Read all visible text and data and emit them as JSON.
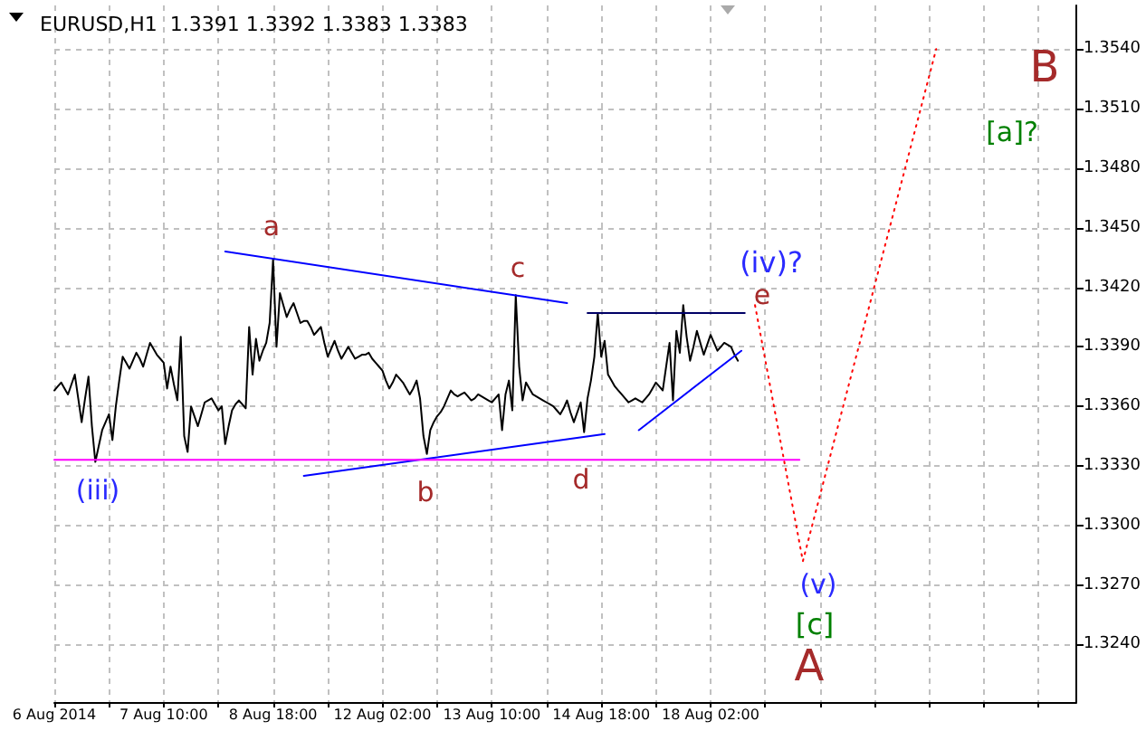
{
  "chart_data": {
    "type": "line",
    "title": "EURUSD,H1  1.3391 1.3392 1.3383 1.3383",
    "grid": true,
    "marker": "none",
    "categories": [
      "6 Aug 2014",
      null,
      null,
      null,
      null,
      null,
      null,
      null,
      null,
      null,
      null,
      null,
      null,
      null,
      null,
      null,
      null,
      null,
      null,
      null,
      null,
      null,
      null,
      null,
      null,
      null,
      null,
      null,
      null,
      null,
      null,
      null,
      "7 Aug 10:00",
      null,
      null,
      null,
      null,
      null,
      null,
      null,
      null,
      null,
      null,
      null,
      null,
      null,
      null,
      null,
      null,
      null,
      null,
      null,
      null,
      null,
      null,
      null,
      null,
      null,
      null,
      null,
      null,
      null,
      null,
      null,
      "8 Aug 18:00",
      null,
      null,
      null,
      null,
      null,
      null,
      null,
      null,
      null,
      null,
      null,
      null,
      null,
      null,
      null,
      null,
      null,
      null,
      null,
      null,
      null,
      null,
      null,
      null,
      null,
      null,
      null,
      null,
      null,
      null,
      null,
      "12 Aug 02:00",
      null,
      null,
      null,
      null,
      null,
      null,
      null,
      null,
      null,
      null,
      null,
      null,
      null,
      null,
      null,
      null,
      null,
      null,
      null,
      null,
      null,
      null,
      null,
      null,
      null,
      null,
      null,
      null,
      null,
      null,
      null,
      "13 Aug 10:00",
      null,
      null,
      null,
      null,
      null,
      null,
      null,
      null,
      null,
      null,
      null,
      null,
      null,
      null,
      null,
      null,
      null,
      null,
      null,
      null,
      null,
      null,
      null,
      null,
      null,
      null,
      null,
      null,
      null,
      null,
      null,
      "14 Aug 18:00",
      null,
      null,
      null,
      null,
      null,
      null,
      null,
      null,
      null,
      null,
      null,
      null,
      null,
      null,
      null,
      null,
      null,
      null,
      null,
      null,
      null,
      null,
      null,
      null,
      null,
      null,
      null,
      null,
      null,
      null,
      null,
      "18 Aug 02:00",
      null,
      null,
      null,
      null,
      null,
      null,
      null,
      null,
      null,
      null,
      null,
      null,
      null,
      null,
      null,
      null,
      null,
      null,
      null,
      null,
      null,
      null,
      null,
      null,
      null,
      null,
      null,
      null,
      null,
      null,
      null,
      null,
      null,
      null,
      null,
      null,
      null,
      null,
      null,
      null,
      null,
      null,
      null,
      null,
      null,
      null,
      null,
      null,
      null,
      null,
      null,
      null,
      null,
      null,
      null,
      null,
      null,
      null,
      null,
      null,
      null,
      null,
      null,
      null,
      null,
      null,
      null,
      null,
      null,
      null,
      null,
      null,
      null,
      null,
      null,
      null,
      null,
      null,
      null,
      null,
      null,
      null,
      null,
      null,
      null,
      null,
      null,
      null,
      null,
      null,
      null,
      null,
      null,
      null,
      null,
      null,
      null,
      null,
      null,
      null,
      null,
      null,
      null,
      null,
      null,
      null,
      null
    ],
    "ylim": [
      1.3211,
      1.3562
    ],
    "yticks": [
      {
        "value": 1.324,
        "label": "1.3240"
      },
      {
        "value": 1.327,
        "label": "1.3270"
      },
      {
        "value": 1.33,
        "label": "1.3300"
      },
      {
        "value": 1.333,
        "label": "1.3330"
      },
      {
        "value": 1.336,
        "label": "1.3360"
      },
      {
        "value": 1.339,
        "label": "1.3390"
      },
      {
        "value": 1.342,
        "label": "1.3420"
      },
      {
        "value": 1.345,
        "label": "1.3450"
      },
      {
        "value": 1.348,
        "label": "1.3480"
      },
      {
        "value": 1.351,
        "label": "1.3510"
      },
      {
        "value": 1.354,
        "label": "1.3540"
      }
    ],
    "series": [
      {
        "color": "#000000",
        "values": [
          1.3368,
          1.337,
          1.3372,
          1.3369,
          1.3366,
          1.3371,
          1.3376,
          1.3364,
          1.3352,
          1.3364,
          1.3375,
          1.335,
          1.3332,
          1.334,
          1.3348,
          1.3352,
          1.3356,
          1.3343,
          1.336,
          1.3373,
          1.3385,
          1.3382,
          1.3379,
          1.3383,
          1.3387,
          1.3384,
          1.338,
          1.3386,
          1.3392,
          1.3389,
          1.3386,
          1.3384,
          1.3382,
          1.3369,
          1.338,
          1.3371,
          1.3363,
          1.3395,
          1.3345,
          1.3337,
          1.336,
          1.3355,
          1.335,
          1.3356,
          1.3362,
          1.3363,
          1.3364,
          1.3361,
          1.3358,
          1.336,
          1.3341,
          1.335,
          1.3358,
          1.3361,
          1.3363,
          1.3361,
          1.3359,
          1.34,
          1.3376,
          1.3394,
          1.3383,
          1.3388,
          1.3392,
          1.3402,
          1.3434,
          1.339,
          1.3417,
          1.3411,
          1.3405,
          1.3409,
          1.3412,
          1.3407,
          1.3402,
          1.3403,
          1.3403,
          1.34,
          1.3396,
          1.3398,
          1.34,
          1.3392,
          1.3385,
          1.3389,
          1.3393,
          1.3388,
          1.3384,
          1.3387,
          1.339,
          1.3387,
          1.3384,
          1.3385,
          1.3386,
          1.3386,
          1.3387,
          1.3384,
          1.3382,
          1.338,
          1.3378,
          1.3373,
          1.3369,
          1.3372,
          1.3376,
          1.3374,
          1.3372,
          1.3369,
          1.3366,
          1.3369,
          1.3373,
          1.3364,
          1.3345,
          1.3336,
          1.3348,
          1.3352,
          1.3355,
          1.3357,
          1.336,
          1.3364,
          1.3368,
          1.3366,
          1.3365,
          1.3366,
          1.3367,
          1.3365,
          1.3363,
          1.3364,
          1.3366,
          1.3365,
          1.3364,
          1.3363,
          1.3362,
          1.3364,
          1.3366,
          1.3348,
          1.3366,
          1.3373,
          1.3358,
          1.3416,
          1.338,
          1.3363,
          1.3372,
          1.3369,
          1.3366,
          1.3365,
          1.3364,
          1.3363,
          1.3362,
          1.3361,
          1.336,
          1.3358,
          1.3356,
          1.3359,
          1.3363,
          1.3357,
          1.3352,
          1.3357,
          1.3362,
          1.3347,
          1.3364,
          1.3373,
          1.3385,
          1.3407,
          1.3385,
          1.3393,
          1.3376,
          1.3373,
          1.337,
          1.3368,
          1.3366,
          1.3364,
          1.3362,
          1.3363,
          1.3364,
          1.3363,
          1.3362,
          1.3364,
          1.3366,
          1.3369,
          1.3372,
          1.337,
          1.3368,
          1.338,
          1.3392,
          1.3363,
          1.3398,
          1.3387,
          1.3411,
          1.3395,
          1.3383,
          1.339,
          1.3398,
          1.3392,
          1.3386,
          1.3391,
          1.3396,
          1.3392,
          1.3388,
          1.339,
          1.3392,
          1.3391,
          1.339,
          1.3386,
          1.3383,
          null,
          null,
          null,
          null,
          null,
          null,
          null,
          null,
          null,
          null,
          null,
          null,
          null,
          null,
          null,
          null,
          null,
          null,
          null,
          null,
          null,
          null,
          null,
          null,
          null,
          null,
          null,
          null,
          null,
          null,
          null,
          null,
          null,
          null,
          null,
          null,
          null,
          null,
          null,
          null,
          null,
          null,
          null,
          null,
          null,
          null,
          null,
          null,
          null,
          null,
          null,
          null,
          null,
          null,
          null,
          null,
          null,
          null,
          null,
          null,
          null,
          null,
          null,
          null,
          null,
          null,
          null,
          null,
          null,
          null,
          null,
          null,
          null,
          null,
          null,
          null,
          null,
          null,
          null,
          null,
          null,
          null,
          null,
          null,
          null,
          null,
          null,
          null,
          null,
          null,
          null,
          null,
          null,
          null,
          null,
          null,
          null,
          null,
          null
        ]
      },
      {
        "color": "#0000ff",
        "values": [
          null,
          null,
          null,
          null,
          null,
          null,
          null,
          null,
          null,
          null,
          null,
          null,
          null,
          null,
          null,
          null,
          null,
          null,
          null,
          null,
          null,
          null,
          null,
          null,
          null,
          null,
          null,
          null,
          null,
          null,
          null,
          null,
          null,
          null,
          null,
          null,
          null,
          null,
          null,
          null,
          null,
          null,
          null,
          null,
          null,
          null,
          null,
          null,
          null,
          null,
          1.3438,
          null,
          null,
          null,
          null,
          null,
          null,
          null,
          null,
          null,
          null,
          null,
          null,
          null,
          null,
          null,
          null,
          null,
          null,
          null,
          null,
          null,
          null,
          null,
          null,
          null,
          null,
          null,
          null,
          null,
          null,
          null,
          null,
          null,
          null,
          null,
          null,
          null,
          null,
          null,
          null,
          null,
          null,
          null,
          null,
          null,
          null,
          null,
          null,
          null,
          null,
          null,
          null,
          null,
          null,
          null,
          null,
          null,
          null,
          null,
          null,
          null,
          null,
          null,
          null,
          null,
          null,
          null,
          null,
          null,
          null,
          null,
          null,
          null,
          null,
          null,
          null,
          null,
          null,
          null,
          null,
          null,
          null,
          null,
          null,
          null,
          null,
          null,
          null,
          null,
          null,
          null,
          null,
          null,
          null,
          null,
          null,
          null,
          null,
          null,
          1.3412,
          null,
          null,
          null,
          null,
          null,
          null,
          null,
          null,
          null,
          null,
          null,
          null,
          null,
          null,
          null,
          null,
          null,
          null,
          null,
          null,
          null,
          null,
          null,
          null,
          null,
          null,
          null,
          null,
          null,
          null,
          null,
          null,
          null,
          null,
          null,
          null,
          null,
          null,
          null,
          null,
          null,
          null,
          null,
          null,
          null,
          null,
          null,
          null,
          null,
          null,
          null,
          null,
          null,
          null,
          null,
          null,
          null,
          null,
          null,
          null,
          null,
          null,
          null,
          null,
          null,
          null,
          null,
          null,
          null,
          null,
          null,
          null,
          null,
          null,
          null,
          null,
          null,
          null,
          null,
          null,
          null,
          null,
          null,
          null,
          null,
          null,
          null,
          null,
          null,
          null,
          null,
          null,
          null,
          null,
          null,
          null,
          null,
          null,
          null,
          null,
          null,
          null,
          null,
          null,
          null,
          null,
          null,
          null,
          null,
          null,
          null,
          null,
          null,
          null,
          null,
          null,
          null,
          null,
          null,
          null,
          null,
          null,
          null,
          null,
          null,
          null,
          null,
          null,
          null,
          null,
          null,
          null,
          null,
          null,
          null,
          null,
          null,
          null,
          null,
          null,
          null,
          null,
          null,
          null,
          null,
          null,
          null,
          null,
          null
        ]
      },
      {
        "color": "#0000ff",
        "values": [
          null,
          null,
          null,
          null,
          null,
          null,
          null,
          null,
          null,
          null,
          null,
          null,
          null,
          null,
          null,
          null,
          null,
          null,
          null,
          null,
          null,
          null,
          null,
          null,
          null,
          null,
          null,
          null,
          null,
          null,
          null,
          null,
          null,
          null,
          null,
          null,
          null,
          null,
          null,
          null,
          null,
          null,
          null,
          null,
          null,
          null,
          null,
          null,
          null,
          null,
          null,
          null,
          null,
          null,
          null,
          null,
          null,
          null,
          null,
          null,
          null,
          null,
          null,
          null,
          null,
          null,
          null,
          null,
          null,
          null,
          null,
          null,
          null,
          1.3325,
          null,
          null,
          null,
          null,
          null,
          null,
          null,
          null,
          null,
          null,
          null,
          null,
          null,
          null,
          null,
          null,
          null,
          null,
          null,
          null,
          null,
          null,
          null,
          null,
          null,
          null,
          null,
          null,
          null,
          null,
          null,
          null,
          null,
          null,
          null,
          null,
          null,
          null,
          null,
          null,
          null,
          null,
          null,
          null,
          null,
          null,
          null,
          null,
          null,
          null,
          null,
          null,
          null,
          null,
          null,
          null,
          null,
          null,
          null,
          null,
          null,
          null,
          null,
          null,
          null,
          null,
          null,
          null,
          null,
          null,
          null,
          null,
          null,
          null,
          null,
          null,
          null,
          null,
          null,
          null,
          null,
          null,
          null,
          null,
          null,
          null,
          null,
          1.3346,
          null,
          null,
          null,
          null,
          null,
          null,
          null,
          null,
          null,
          null,
          null,
          null,
          null,
          null,
          null,
          null,
          null,
          null,
          null,
          null,
          null,
          null,
          null,
          null,
          null,
          null,
          null,
          null,
          null,
          null,
          null,
          null,
          null,
          null,
          null,
          null,
          null,
          null,
          null,
          null,
          null,
          null,
          null,
          null,
          null,
          null,
          null,
          null,
          null,
          null,
          null,
          null,
          null,
          null,
          null,
          null,
          null,
          null,
          null,
          null,
          null,
          null,
          null,
          null,
          null,
          null,
          null,
          null,
          null,
          null,
          null,
          null,
          null,
          null,
          null,
          null,
          null,
          null,
          null,
          null,
          null,
          null,
          null,
          null,
          null,
          null,
          null,
          null,
          null,
          null,
          null,
          null,
          null,
          null,
          null,
          null,
          null,
          null,
          null,
          null,
          null,
          null,
          null,
          null,
          null,
          null,
          null,
          null,
          null,
          null,
          null,
          null,
          null,
          null,
          null,
          null,
          null,
          null,
          null,
          null,
          null,
          null,
          null,
          null,
          null,
          null,
          null,
          null,
          null,
          null,
          null,
          null,
          null,
          null,
          null,
          null,
          null,
          null
        ]
      },
      {
        "color": "#0000ff",
        "values": [
          null,
          null,
          null,
          null,
          null,
          null,
          null,
          null,
          null,
          null,
          null,
          null,
          null,
          null,
          null,
          null,
          null,
          null,
          null,
          null,
          null,
          null,
          null,
          null,
          null,
          null,
          null,
          null,
          null,
          null,
          null,
          null,
          null,
          null,
          null,
          null,
          null,
          null,
          null,
          null,
          null,
          null,
          null,
          null,
          null,
          null,
          null,
          null,
          null,
          null,
          null,
          null,
          null,
          null,
          null,
          null,
          null,
          null,
          null,
          null,
          null,
          null,
          null,
          null,
          null,
          null,
          null,
          null,
          null,
          null,
          null,
          null,
          null,
          null,
          null,
          null,
          null,
          null,
          null,
          null,
          null,
          null,
          null,
          null,
          null,
          null,
          null,
          null,
          null,
          null,
          null,
          null,
          null,
          null,
          null,
          null,
          null,
          null,
          null,
          null,
          null,
          null,
          null,
          null,
          null,
          null,
          null,
          null,
          null,
          null,
          null,
          null,
          null,
          null,
          null,
          null,
          null,
          null,
          null,
          null,
          null,
          null,
          null,
          null,
          null,
          null,
          null,
          null,
          null,
          null,
          null,
          null,
          null,
          null,
          null,
          null,
          null,
          null,
          null,
          null,
          null,
          null,
          null,
          null,
          null,
          null,
          null,
          null,
          null,
          null,
          null,
          null,
          null,
          null,
          null,
          null,
          null,
          null,
          null,
          null,
          null,
          null,
          null,
          null,
          null,
          null,
          null,
          null,
          null,
          null,
          null,
          1.3348,
          null,
          null,
          null,
          null,
          null,
          null,
          null,
          null,
          null,
          null,
          null,
          null,
          null,
          null,
          null,
          null,
          null,
          null,
          null,
          null,
          null,
          null,
          null,
          null,
          null,
          null,
          null,
          null,
          null,
          1.3388,
          null,
          null,
          null,
          null,
          null,
          null,
          null,
          null,
          null,
          null,
          null,
          null,
          null,
          null,
          null,
          null,
          null,
          null,
          null,
          null,
          null,
          null,
          null,
          null,
          null,
          null,
          null,
          null,
          null,
          null,
          null,
          null,
          null,
          null,
          null,
          null,
          null,
          null,
          null,
          null,
          null,
          null,
          null,
          null,
          null,
          null,
          null,
          null,
          null,
          null,
          null,
          null,
          null,
          null,
          null,
          null,
          null,
          null,
          null,
          null,
          null,
          null,
          null,
          null,
          null,
          null,
          null,
          null,
          null,
          null,
          null,
          null,
          null,
          null,
          null,
          null,
          null,
          null,
          null,
          null,
          null,
          null,
          null,
          null,
          null,
          null,
          null,
          null,
          null,
          null,
          null,
          null,
          null,
          null,
          null,
          null,
          null,
          null
        ]
      },
      {
        "color": "#000066",
        "values": [
          null,
          null,
          null,
          null,
          null,
          null,
          null,
          null,
          null,
          null,
          null,
          null,
          null,
          null,
          null,
          null,
          null,
          null,
          null,
          null,
          null,
          null,
          null,
          null,
          null,
          null,
          null,
          null,
          null,
          null,
          null,
          null,
          null,
          null,
          null,
          null,
          null,
          null,
          null,
          null,
          null,
          null,
          null,
          null,
          null,
          null,
          null,
          null,
          null,
          null,
          null,
          null,
          null,
          null,
          null,
          null,
          null,
          null,
          null,
          null,
          null,
          null,
          null,
          null,
          null,
          null,
          null,
          null,
          null,
          null,
          null,
          null,
          null,
          null,
          null,
          null,
          null,
          null,
          null,
          null,
          null,
          null,
          null,
          null,
          null,
          null,
          null,
          null,
          null,
          null,
          null,
          null,
          null,
          null,
          null,
          null,
          null,
          null,
          null,
          null,
          null,
          null,
          null,
          null,
          null,
          null,
          null,
          null,
          null,
          null,
          null,
          null,
          null,
          null,
          null,
          null,
          null,
          null,
          null,
          null,
          null,
          null,
          null,
          null,
          null,
          null,
          null,
          null,
          null,
          null,
          null,
          null,
          null,
          null,
          null,
          null,
          null,
          null,
          null,
          null,
          null,
          null,
          null,
          null,
          null,
          null,
          null,
          null,
          null,
          null,
          null,
          null,
          null,
          null,
          null,
          null,
          1.3407,
          null,
          null,
          null,
          null,
          null,
          null,
          null,
          null,
          null,
          null,
          null,
          null,
          null,
          null,
          null,
          null,
          null,
          null,
          null,
          null,
          null,
          null,
          null,
          null,
          null,
          null,
          null,
          null,
          null,
          null,
          null,
          null,
          null,
          null,
          null,
          null,
          null,
          null,
          null,
          null,
          null,
          null,
          null,
          null,
          null,
          1.3407,
          null,
          null,
          null,
          null,
          null,
          null,
          null,
          null,
          null,
          null,
          null,
          null,
          null,
          null,
          null,
          null,
          null,
          null,
          null,
          null,
          null,
          null,
          null,
          null,
          null,
          null,
          null,
          null,
          null,
          null,
          null,
          null,
          null,
          null,
          null,
          null,
          null,
          null,
          null,
          null,
          null,
          null,
          null,
          null,
          null,
          null,
          null,
          null,
          null,
          null,
          null,
          null,
          null,
          null,
          null,
          null,
          null,
          null,
          null,
          null,
          null,
          null,
          null,
          null,
          null,
          null,
          null,
          null,
          null,
          null,
          null,
          null,
          null,
          null,
          null,
          null,
          null,
          null,
          null,
          null,
          null,
          null,
          null,
          null,
          null,
          null,
          null,
          null,
          null,
          null,
          null,
          null,
          null,
          null,
          null,
          null,
          null
        ]
      },
      {
        "color": "#ff00ff",
        "values": [
          1.3333,
          null,
          null,
          null,
          null,
          null,
          null,
          null,
          null,
          null,
          null,
          null,
          null,
          null,
          null,
          null,
          null,
          null,
          null,
          null,
          null,
          null,
          null,
          null,
          null,
          null,
          null,
          null,
          null,
          null,
          null,
          null,
          null,
          null,
          null,
          null,
          null,
          null,
          null,
          null,
          null,
          null,
          null,
          null,
          null,
          null,
          null,
          null,
          null,
          null,
          null,
          null,
          null,
          null,
          null,
          null,
          null,
          null,
          null,
          null,
          null,
          null,
          null,
          null,
          null,
          null,
          null,
          null,
          null,
          null,
          null,
          null,
          null,
          null,
          null,
          null,
          null,
          null,
          null,
          null,
          null,
          null,
          null,
          null,
          null,
          null,
          null,
          null,
          null,
          null,
          null,
          null,
          null,
          null,
          null,
          null,
          null,
          null,
          null,
          null,
          null,
          null,
          null,
          null,
          null,
          null,
          null,
          null,
          null,
          null,
          null,
          null,
          null,
          null,
          null,
          null,
          null,
          null,
          null,
          null,
          null,
          null,
          null,
          null,
          null,
          null,
          null,
          null,
          null,
          null,
          null,
          null,
          null,
          null,
          null,
          null,
          null,
          null,
          null,
          null,
          null,
          null,
          null,
          null,
          null,
          null,
          null,
          null,
          null,
          null,
          null,
          null,
          null,
          null,
          null,
          null,
          null,
          null,
          null,
          null,
          null,
          null,
          null,
          null,
          null,
          null,
          null,
          null,
          null,
          null,
          null,
          null,
          null,
          null,
          null,
          null,
          null,
          null,
          null,
          null,
          null,
          null,
          null,
          null,
          null,
          null,
          null,
          null,
          null,
          null,
          null,
          null,
          null,
          null,
          null,
          null,
          null,
          null,
          null,
          null,
          null,
          null,
          null,
          null,
          null,
          null,
          null,
          null,
          null,
          null,
          null,
          null,
          null,
          null,
          null,
          null,
          null,
          null,
          1.3333,
          null,
          null,
          null,
          null,
          null,
          null,
          null,
          null,
          null,
          null,
          null,
          null,
          null,
          null,
          null,
          null,
          null,
          null,
          null,
          null,
          null,
          null,
          null,
          null,
          null,
          null,
          null,
          null,
          null,
          null,
          null,
          null,
          null,
          null,
          null,
          null,
          null,
          null,
          null,
          null,
          null,
          null,
          null,
          null,
          null,
          null,
          null,
          null,
          null,
          null,
          null,
          null,
          null,
          null,
          null,
          null,
          null,
          null,
          null,
          null,
          null,
          null,
          null,
          null,
          null,
          null,
          null,
          null,
          null,
          null,
          null,
          null,
          null,
          null,
          null,
          null,
          null,
          null,
          null,
          null,
          null
        ]
      },
      {
        "color": "#ff0000",
        "line_style": "dotted",
        "values": [
          null,
          null,
          null,
          null,
          null,
          null,
          null,
          null,
          null,
          null,
          null,
          null,
          null,
          null,
          null,
          null,
          null,
          null,
          null,
          null,
          null,
          null,
          null,
          null,
          null,
          null,
          null,
          null,
          null,
          null,
          null,
          null,
          null,
          null,
          null,
          null,
          null,
          null,
          null,
          null,
          null,
          null,
          null,
          null,
          null,
          null,
          null,
          null,
          null,
          null,
          null,
          null,
          null,
          null,
          null,
          null,
          null,
          null,
          null,
          null,
          null,
          null,
          null,
          null,
          null,
          null,
          null,
          null,
          null,
          null,
          null,
          null,
          null,
          null,
          null,
          null,
          null,
          null,
          null,
          null,
          null,
          null,
          null,
          null,
          null,
          null,
          null,
          null,
          null,
          null,
          null,
          null,
          null,
          null,
          null,
          null,
          null,
          null,
          null,
          null,
          null,
          null,
          null,
          null,
          null,
          null,
          null,
          null,
          null,
          null,
          null,
          null,
          null,
          null,
          null,
          null,
          null,
          null,
          null,
          null,
          null,
          null,
          null,
          null,
          null,
          null,
          null,
          null,
          null,
          null,
          null,
          null,
          null,
          null,
          null,
          null,
          null,
          null,
          null,
          null,
          null,
          null,
          null,
          null,
          null,
          null,
          null,
          null,
          null,
          null,
          null,
          null,
          null,
          null,
          null,
          null,
          null,
          null,
          null,
          null,
          null,
          null,
          null,
          null,
          null,
          null,
          null,
          null,
          null,
          null,
          null,
          null,
          null,
          null,
          null,
          null,
          null,
          null,
          null,
          null,
          null,
          null,
          null,
          null,
          null,
          null,
          null,
          null,
          null,
          null,
          null,
          null,
          null,
          null,
          null,
          null,
          null,
          null,
          null,
          null,
          null,
          null,
          null,
          null,
          null,
          1.3411,
          null,
          null,
          null,
          null,
          null,
          null,
          null,
          null,
          null,
          null,
          null,
          null,
          null,
          1.3282,
          null,
          null,
          null,
          null,
          null,
          null,
          null,
          null,
          null,
          null,
          null,
          null,
          null,
          null,
          null,
          null,
          null,
          null,
          null,
          null,
          null,
          null,
          null,
          null,
          null,
          null,
          null,
          null,
          null,
          null,
          null,
          null,
          null,
          null,
          null,
          null,
          null,
          null,
          1.354,
          null,
          null,
          null,
          null,
          null,
          null,
          null,
          null,
          null,
          null,
          null,
          null,
          null,
          null,
          null,
          null,
          null,
          null,
          null,
          null,
          null,
          null,
          null,
          null,
          null,
          null,
          null,
          null,
          null,
          null,
          null,
          null,
          null,
          null,
          null,
          null,
          null,
          null,
          null,
          null,
          null
        ]
      }
    ],
    "annotations": [
      "a",
      "b",
      "c",
      "d",
      "e",
      "(iii)",
      "(iv)?",
      "(v)",
      "[c]",
      "A",
      "B",
      "[a]?"
    ]
  }
}
